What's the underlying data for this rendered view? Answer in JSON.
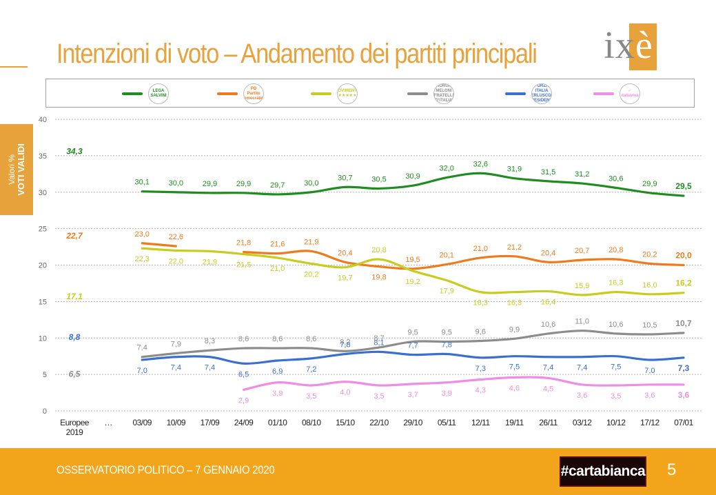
{
  "title": "Intenzioni di voto – Andamento dei partiti principali",
  "brand": {
    "logo_ix": "ix",
    "logo_e": "è",
    "accent": "#E8A23C"
  },
  "side_tab": {
    "line1": "Valori %",
    "line2": "VOTI VALIDI"
  },
  "legend": [
    {
      "party": "Lega",
      "logo_text": [
        "LEGA",
        "SALVINI"
      ],
      "color": "#1E8C1E"
    },
    {
      "party": "PD",
      "logo_text": [
        "PD",
        "Partito Democratico"
      ],
      "color": "#F07A1A"
    },
    {
      "party": "M5S",
      "logo_text": [
        "MOVIMENTO",
        "★★★★★"
      ],
      "color": "#C8CC20"
    },
    {
      "party": "FdI",
      "logo_text": [
        "GIORGIA",
        "MELONI",
        "FRATELLI D'ITALIA"
      ],
      "color": "#8C8C8C"
    },
    {
      "party": "FI",
      "logo_text": [
        "FORZA ITALIA",
        "BERLUSCONI",
        "PRESIDENTE"
      ],
      "color": "#3A6FD0"
    },
    {
      "party": "IV",
      "logo_text": [
        "✓",
        "italiaviva"
      ],
      "color": "#F08CE8"
    }
  ],
  "chart_data": {
    "type": "line",
    "ylim": [
      0,
      40
    ],
    "yticks": [
      0,
      5,
      10,
      15,
      20,
      25,
      30,
      35,
      40
    ],
    "categories": [
      [
        "Europee",
        "2019"
      ],
      [
        "…"
      ],
      [
        "03/09"
      ],
      [
        "10/09"
      ],
      [
        "17/09"
      ],
      [
        "24/09"
      ],
      [
        "01/10"
      ],
      [
        "08/10"
      ],
      [
        "15/10"
      ],
      [
        "22/10"
      ],
      [
        "29/10"
      ],
      [
        "05/11"
      ],
      [
        "12/11"
      ],
      [
        "19/11"
      ],
      [
        "26/11"
      ],
      [
        "03/12"
      ],
      [
        "10/12"
      ],
      [
        "17/12"
      ],
      [
        "07/01"
      ]
    ],
    "series": [
      {
        "key": "lega",
        "color": "#1E8C1E",
        "labelPos": "above",
        "values": [
          34.3,
          null,
          30.1,
          30.0,
          29.9,
          29.9,
          29.7,
          30.0,
          30.7,
          30.5,
          30.9,
          32.0,
          32.6,
          31.9,
          31.5,
          31.2,
          30.6,
          29.9,
          29.5
        ],
        "labels": [
          "34,3",
          null,
          "30,1",
          "30,0",
          "29,9",
          "29,9",
          "29,7",
          "30,0",
          "30,7",
          "30,5",
          "30,9",
          "32,0",
          "32,6",
          "31,9",
          "31,5",
          "31,2",
          "30,6",
          "29,9",
          "29,5"
        ]
      },
      {
        "key": "pd",
        "color": "#F07A1A",
        "labelPos": "above",
        "values": [
          22.7,
          null,
          23.0,
          22.6,
          null,
          21.8,
          21.6,
          21.9,
          20.4,
          19.8,
          19.5,
          20.1,
          21.0,
          21.2,
          20.4,
          20.7,
          20.8,
          20.2,
          20.0
        ],
        "labels": [
          "22,7",
          null,
          "23,0",
          "22,6",
          null,
          "21,8",
          "21,6",
          "21,9",
          "20,4",
          "19,8",
          "19,5",
          "20,1",
          "21,0",
          "21,2",
          "20,4",
          "20,7",
          "20,8",
          "20,2",
          "20,0"
        ],
        "labelBelowIdx": [
          9
        ]
      },
      {
        "key": "m5s",
        "color": "#C8CC20",
        "labelPos": "below",
        "values": [
          17.1,
          null,
          22.3,
          22.0,
          21.9,
          21.5,
          21.0,
          20.2,
          19.7,
          20.8,
          19.2,
          17.9,
          16.3,
          16.3,
          16.4,
          15.9,
          16.3,
          16.0,
          16.2
        ],
        "labels": [
          "17,1",
          null,
          "22,3",
          "22,0",
          "21,9",
          "21,5",
          "21,0",
          "20,2",
          "19,7",
          "20,8",
          "19,2",
          "17,9",
          "16,3",
          "16,3",
          "16,4",
          "15,9",
          "16,3",
          "16,0",
          "16,2"
        ],
        "labelAboveIdx": [
          9,
          15,
          16,
          17,
          18
        ]
      },
      {
        "key": "fdi",
        "color": "#8C8C8C",
        "labelPos": "above",
        "values": [
          6.5,
          null,
          7.4,
          7.9,
          8.3,
          8.6,
          8.6,
          8.6,
          8.2,
          8.7,
          9.5,
          9.5,
          9.6,
          9.9,
          10.6,
          11.0,
          10.6,
          10.5,
          10.7
        ],
        "labels": [
          "6,5",
          null,
          "7,4",
          "7,9",
          "8,3",
          "8,6",
          "8,6",
          "8,6",
          "8,2",
          "8,7",
          "9,5",
          "9,5",
          "9,6",
          "9,9",
          "10,6",
          "11,0",
          "10,6",
          "10,5",
          "10,7"
        ],
        "labelBelowIdx": [
          0
        ]
      },
      {
        "key": "fi",
        "color": "#3A6FD0",
        "labelPos": "below",
        "values": [
          8.8,
          null,
          7.0,
          7.4,
          7.4,
          6.5,
          6.9,
          7.2,
          7.8,
          8.1,
          7.7,
          7.8,
          7.3,
          7.5,
          7.4,
          7.4,
          7.5,
          7.0,
          7.3
        ],
        "labels": [
          "8,8",
          null,
          "7,0",
          "7,4",
          "7,4",
          "6,5",
          "6,9",
          "7,2",
          "7,8",
          "8,1",
          "7,7",
          "7,8",
          "7,3",
          "7,5",
          "7,4",
          "7,4",
          "7,5",
          "7,0",
          "7,3"
        ],
        "labelAboveIdx": [
          0,
          8,
          9,
          10,
          11
        ]
      },
      {
        "key": "iv",
        "color": "#F08CE8",
        "labelPos": "below",
        "values": [
          null,
          null,
          null,
          null,
          null,
          2.9,
          3.9,
          3.5,
          4.0,
          3.5,
          3.7,
          3.9,
          4.3,
          4.6,
          4.5,
          3.6,
          3.5,
          3.6,
          3.6
        ],
        "labels": [
          null,
          null,
          null,
          null,
          null,
          "2,9",
          "3,9",
          "3,5",
          "4,0",
          "3,5",
          "3,7",
          "3,9",
          "4,3",
          "4,6",
          "4,5",
          "3,6",
          "3,5",
          "3,6",
          "3,6"
        ]
      }
    ]
  },
  "footer": {
    "text": "OSSERVATORIO POLITICO – 7 GENNAIO 2020",
    "show_logo": "#cartabianca",
    "page": "5"
  }
}
